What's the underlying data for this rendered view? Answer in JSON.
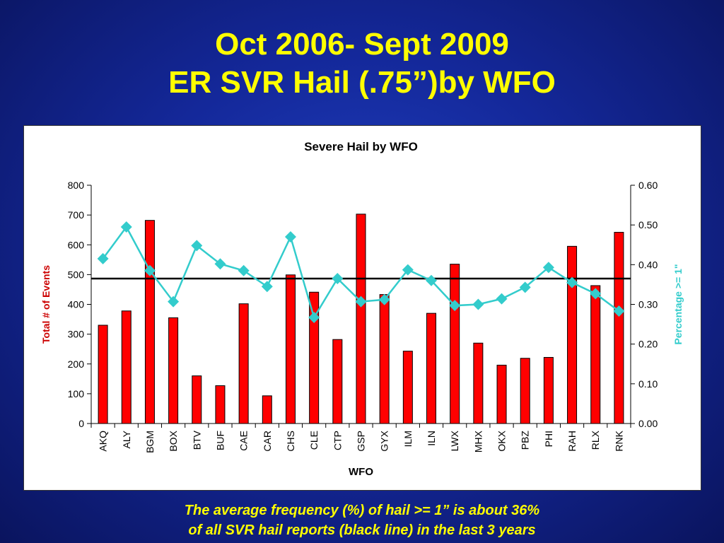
{
  "slide": {
    "title_line1": "Oct 2006- Sept 2009",
    "title_line2": "ER SVR Hail (.75”)by WFO",
    "caption_line1": "The average frequency (%) of hail >= 1” is about 36%",
    "caption_line2": "of all SVR hail reports (black line) in the last 3 years"
  },
  "chart_data": {
    "type": "bar",
    "title": "Severe Hail by WFO",
    "xlabel": "WFO",
    "ylabel": "Total # of Events",
    "y2label": "Percentage >= 1\"",
    "ylim": [
      0,
      800
    ],
    "y2lim": [
      0,
      0.6
    ],
    "yticks": [
      "0",
      "100",
      "200",
      "300",
      "400",
      "500",
      "600",
      "700",
      "800"
    ],
    "y2ticks": [
      "0.00",
      "0.10",
      "0.20",
      "0.30",
      "0.40",
      "0.50",
      "0.60"
    ],
    "categories": [
      "AKQ",
      "ALY",
      "BGM",
      "BOX",
      "BTV",
      "BUF",
      "CAE",
      "CAR",
      "CHS",
      "CLE",
      "CTP",
      "GSP",
      "GYX",
      "ILM",
      "ILN",
      "LWX",
      "MHX",
      "OKX",
      "PBZ",
      "PHI",
      "RAH",
      "RLX",
      "RNK"
    ],
    "series": [
      {
        "type": "bar",
        "axis": "left",
        "color": "#ff0000",
        "values": [
          330,
          378,
          682,
          355,
          160,
          127,
          402,
          93,
          499,
          441,
          282,
          703,
          433,
          243,
          370,
          535,
          270,
          196,
          219,
          222,
          595,
          463,
          642
        ]
      },
      {
        "type": "line",
        "axis": "right",
        "color": "#33cccc",
        "values": [
          0.415,
          0.495,
          0.385,
          0.307,
          0.448,
          0.402,
          0.385,
          0.345,
          0.47,
          0.267,
          0.365,
          0.307,
          0.312,
          0.387,
          0.36,
          0.297,
          0.3,
          0.314,
          0.343,
          0.393,
          0.355,
          0.327,
          0.283
        ]
      }
    ],
    "reference_line": {
      "axis": "right",
      "value": 0.365,
      "color": "#000000"
    },
    "grid": false,
    "legend": "none"
  }
}
